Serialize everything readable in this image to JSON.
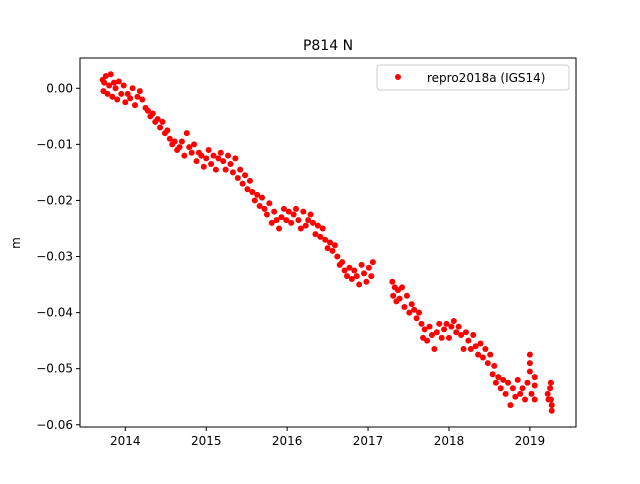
{
  "chart_data": {
    "type": "scatter",
    "title": "P814 N",
    "xlabel": "",
    "ylabel": "m",
    "xlim": [
      2013.44,
      2019.57
    ],
    "ylim": [
      -0.0604,
      0.0054
    ],
    "xticks": [
      2014,
      2015,
      2016,
      2017,
      2018,
      2019
    ],
    "xtick_labels": [
      "2014",
      "2015",
      "2016",
      "2017",
      "2018",
      "2019"
    ],
    "yticks": [
      0.0,
      -0.01,
      -0.02,
      -0.03,
      -0.04,
      -0.05,
      -0.06
    ],
    "ytick_labels": [
      "0.00",
      "−0.01",
      "−0.02",
      "−0.03",
      "−0.04",
      "−0.05",
      "−0.06"
    ],
    "grid": false,
    "legend": {
      "placement": "top-right",
      "entries": [
        "repro2018a (IGS14)"
      ]
    },
    "series": [
      {
        "name": "repro2018a (IGS14)",
        "color": "#ff0000",
        "points": [
          [
            2013.72,
            0.0015
          ],
          [
            2013.73,
            -0.0005
          ],
          [
            2013.74,
            0.001
          ],
          [
            2013.76,
            0.0022
          ],
          [
            2013.78,
            -0.001
          ],
          [
            2013.8,
            0.0005
          ],
          [
            2013.82,
            0.0025
          ],
          [
            2013.84,
            -0.0015
          ],
          [
            2013.86,
            0.001
          ],
          [
            2013.88,
            0.0
          ],
          [
            2013.9,
            -0.002
          ],
          [
            2013.92,
            0.0012
          ],
          [
            2013.95,
            -0.001
          ],
          [
            2013.98,
            0.0005
          ],
          [
            2014.0,
            -0.0025
          ],
          [
            2014.03,
            -0.001
          ],
          [
            2014.06,
            -0.0018
          ],
          [
            2014.09,
            0.0
          ],
          [
            2014.12,
            -0.003
          ],
          [
            2014.15,
            -0.0015
          ],
          [
            2014.18,
            -0.0005
          ],
          [
            2014.21,
            -0.002
          ],
          [
            2014.25,
            -0.0035
          ],
          [
            2014.28,
            -0.004
          ],
          [
            2014.31,
            -0.005
          ],
          [
            2014.34,
            -0.0045
          ],
          [
            2014.37,
            -0.006
          ],
          [
            2014.4,
            -0.0055
          ],
          [
            2014.43,
            -0.007
          ],
          [
            2014.46,
            -0.006
          ],
          [
            2014.49,
            -0.008
          ],
          [
            2014.52,
            -0.0075
          ],
          [
            2014.55,
            -0.009
          ],
          [
            2014.58,
            -0.01
          ],
          [
            2014.61,
            -0.0095
          ],
          [
            2014.64,
            -0.011
          ],
          [
            2014.67,
            -0.0105
          ],
          [
            2014.7,
            -0.0095
          ],
          [
            2014.73,
            -0.012
          ],
          [
            2014.76,
            -0.008
          ],
          [
            2014.79,
            -0.0105
          ],
          [
            2014.82,
            -0.0115
          ],
          [
            2014.85,
            -0.01
          ],
          [
            2014.88,
            -0.013
          ],
          [
            2014.91,
            -0.0115
          ],
          [
            2014.94,
            -0.012
          ],
          [
            2014.97,
            -0.014
          ],
          [
            2015.0,
            -0.0125
          ],
          [
            2015.03,
            -0.011
          ],
          [
            2015.06,
            -0.0135
          ],
          [
            2015.09,
            -0.012
          ],
          [
            2015.12,
            -0.0145
          ],
          [
            2015.15,
            -0.0125
          ],
          [
            2015.18,
            -0.0115
          ],
          [
            2015.21,
            -0.013
          ],
          [
            2015.24,
            -0.0145
          ],
          [
            2015.27,
            -0.012
          ],
          [
            2015.3,
            -0.0135
          ],
          [
            2015.33,
            -0.015
          ],
          [
            2015.36,
            -0.0125
          ],
          [
            2015.39,
            -0.016
          ],
          [
            2015.42,
            -0.0145
          ],
          [
            2015.45,
            -0.017
          ],
          [
            2015.48,
            -0.0155
          ],
          [
            2015.51,
            -0.018
          ],
          [
            2015.54,
            -0.0165
          ],
          [
            2015.57,
            -0.0185
          ],
          [
            2015.6,
            -0.02
          ],
          [
            2015.63,
            -0.019
          ],
          [
            2015.66,
            -0.021
          ],
          [
            2015.69,
            -0.0195
          ],
          [
            2015.72,
            -0.0215
          ],
          [
            2015.75,
            -0.0225
          ],
          [
            2015.78,
            -0.0205
          ],
          [
            2015.81,
            -0.024
          ],
          [
            2015.84,
            -0.022
          ],
          [
            2015.87,
            -0.0235
          ],
          [
            2015.9,
            -0.025
          ],
          [
            2015.93,
            -0.023
          ],
          [
            2015.96,
            -0.0215
          ],
          [
            2015.99,
            -0.0235
          ],
          [
            2016.02,
            -0.022
          ],
          [
            2016.05,
            -0.024
          ],
          [
            2016.08,
            -0.0225
          ],
          [
            2016.11,
            -0.0215
          ],
          [
            2016.14,
            -0.0235
          ],
          [
            2016.17,
            -0.025
          ],
          [
            2016.2,
            -0.022
          ],
          [
            2016.23,
            -0.0245
          ],
          [
            2016.26,
            -0.0235
          ],
          [
            2016.29,
            -0.0225
          ],
          [
            2016.32,
            -0.024
          ],
          [
            2016.35,
            -0.026
          ],
          [
            2016.38,
            -0.0245
          ],
          [
            2016.41,
            -0.0265
          ],
          [
            2016.44,
            -0.025
          ],
          [
            2016.47,
            -0.027
          ],
          [
            2016.5,
            -0.0285
          ],
          [
            2016.53,
            -0.0275
          ],
          [
            2016.56,
            -0.029
          ],
          [
            2016.59,
            -0.028
          ],
          [
            2016.62,
            -0.03
          ],
          [
            2016.65,
            -0.0315
          ],
          [
            2016.68,
            -0.031
          ],
          [
            2016.71,
            -0.0325
          ],
          [
            2016.74,
            -0.0335
          ],
          [
            2016.77,
            -0.032
          ],
          [
            2016.8,
            -0.034
          ],
          [
            2016.83,
            -0.0325
          ],
          [
            2016.86,
            -0.0335
          ],
          [
            2016.89,
            -0.035
          ],
          [
            2016.92,
            -0.0315
          ],
          [
            2016.95,
            -0.033
          ],
          [
            2016.98,
            -0.0345
          ],
          [
            2017.01,
            -0.032
          ],
          [
            2017.04,
            -0.0335
          ],
          [
            2017.06,
            -0.031
          ],
          [
            2017.3,
            -0.0345
          ],
          [
            2017.31,
            -0.037
          ],
          [
            2017.33,
            -0.0355
          ],
          [
            2017.35,
            -0.038
          ],
          [
            2017.37,
            -0.036
          ],
          [
            2017.39,
            -0.0375
          ],
          [
            2017.42,
            -0.0355
          ],
          [
            2017.45,
            -0.039
          ],
          [
            2017.48,
            -0.037
          ],
          [
            2017.51,
            -0.04
          ],
          [
            2017.54,
            -0.0385
          ],
          [
            2017.57,
            -0.0395
          ],
          [
            2017.6,
            -0.041
          ],
          [
            2017.63,
            -0.04
          ],
          [
            2017.66,
            -0.042
          ],
          [
            2017.68,
            -0.0445
          ],
          [
            2017.7,
            -0.043
          ],
          [
            2017.73,
            -0.045
          ],
          [
            2017.76,
            -0.0425
          ],
          [
            2017.79,
            -0.044
          ],
          [
            2017.82,
            -0.0465
          ],
          [
            2017.85,
            -0.0435
          ],
          [
            2017.88,
            -0.042
          ],
          [
            2017.91,
            -0.0445
          ],
          [
            2017.94,
            -0.043
          ],
          [
            2017.97,
            -0.042
          ],
          [
            2018.0,
            -0.0445
          ],
          [
            2018.03,
            -0.0425
          ],
          [
            2018.06,
            -0.0415
          ],
          [
            2018.09,
            -0.0435
          ],
          [
            2018.12,
            -0.0425
          ],
          [
            2018.15,
            -0.044
          ],
          [
            2018.18,
            -0.0465
          ],
          [
            2018.21,
            -0.0435
          ],
          [
            2018.24,
            -0.045
          ],
          [
            2018.27,
            -0.0465
          ],
          [
            2018.3,
            -0.044
          ],
          [
            2018.33,
            -0.046
          ],
          [
            2018.36,
            -0.0475
          ],
          [
            2018.39,
            -0.0455
          ],
          [
            2018.42,
            -0.048
          ],
          [
            2018.45,
            -0.0465
          ],
          [
            2018.48,
            -0.049
          ],
          [
            2018.51,
            -0.0475
          ],
          [
            2018.54,
            -0.051
          ],
          [
            2018.56,
            -0.0495
          ],
          [
            2018.58,
            -0.0525
          ],
          [
            2018.61,
            -0.0515
          ],
          [
            2018.64,
            -0.0535
          ],
          [
            2018.67,
            -0.052
          ],
          [
            2018.7,
            -0.0545
          ],
          [
            2018.73,
            -0.0525
          ],
          [
            2018.76,
            -0.0565
          ],
          [
            2018.79,
            -0.0535
          ],
          [
            2018.82,
            -0.055
          ],
          [
            2018.85,
            -0.052
          ],
          [
            2018.88,
            -0.0545
          ],
          [
            2018.91,
            -0.0535
          ],
          [
            2018.94,
            -0.0555
          ],
          [
            2018.97,
            -0.0525
          ],
          [
            2019.0,
            -0.0475
          ],
          [
            2019.0,
            -0.049
          ],
          [
            2019.0,
            -0.0505
          ],
          [
            2019.02,
            -0.0545
          ],
          [
            2019.06,
            -0.0515
          ],
          [
            2019.06,
            -0.053
          ],
          [
            2019.06,
            -0.0555
          ],
          [
            2019.22,
            -0.0545
          ],
          [
            2019.23,
            -0.0555
          ],
          [
            2019.25,
            -0.0535
          ],
          [
            2019.26,
            -0.0525
          ],
          [
            2019.27,
            -0.0565
          ],
          [
            2019.27,
            -0.0575
          ],
          [
            2019.26,
            -0.0555
          ]
        ]
      }
    ]
  }
}
